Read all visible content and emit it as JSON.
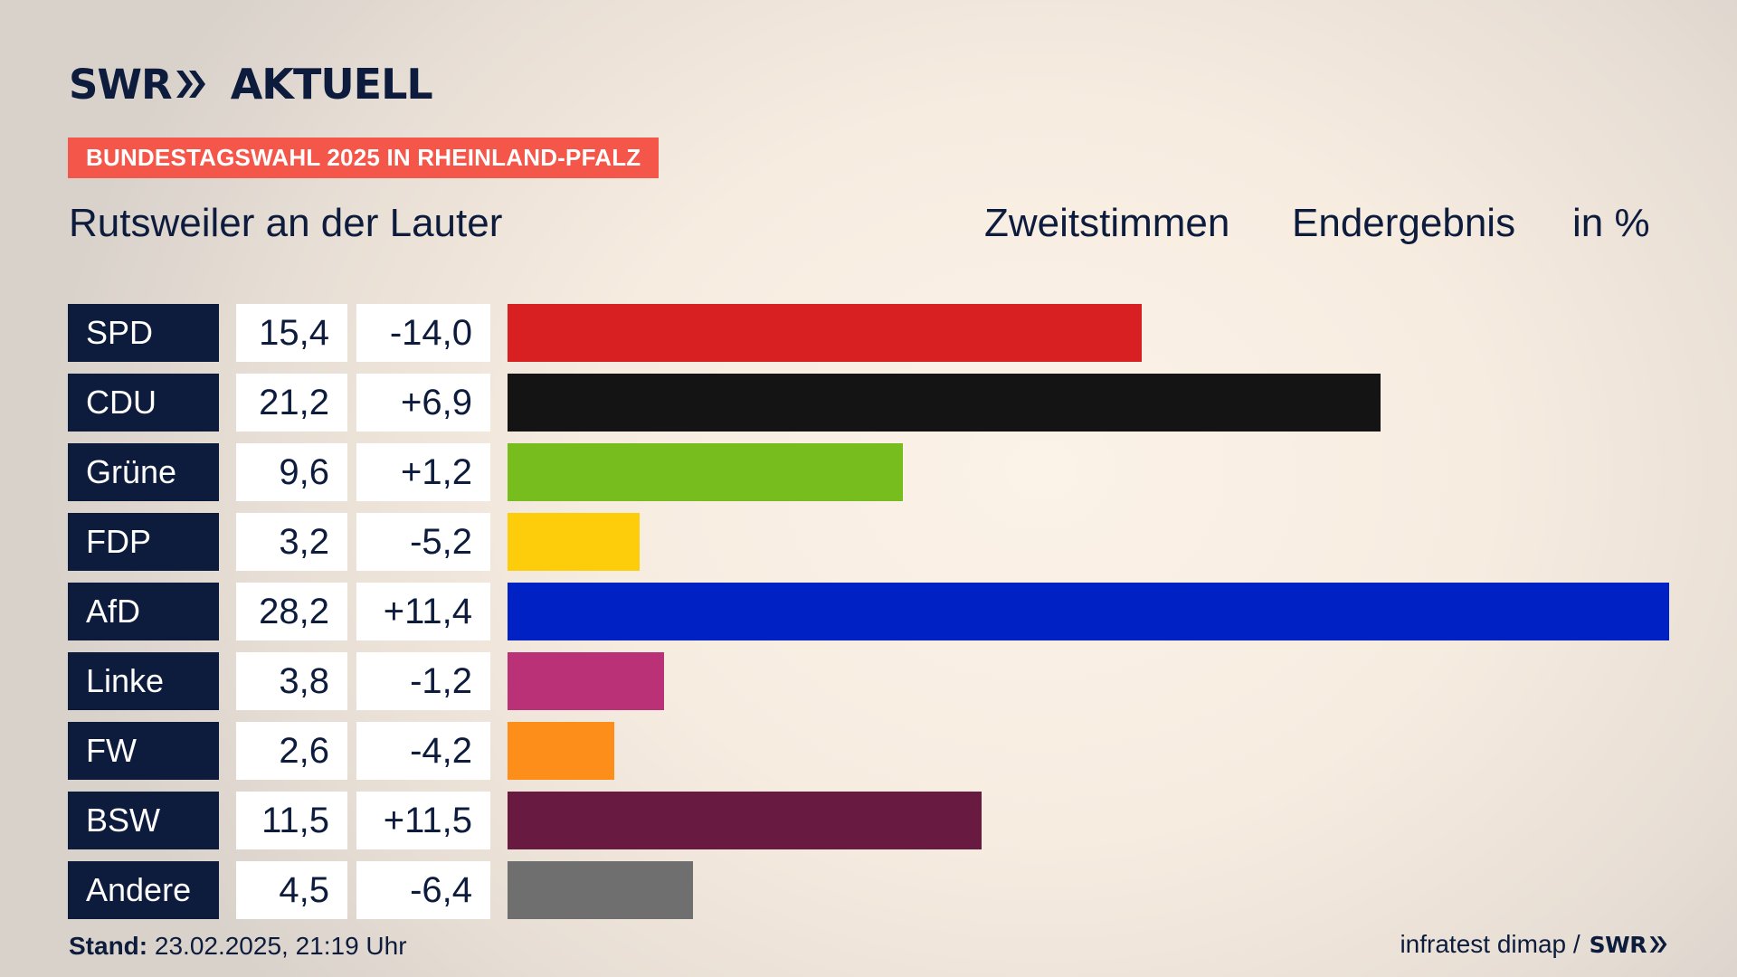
{
  "brand": {
    "logo_text": "SWR",
    "logo_suffix": "AKTUELL",
    "topic": "BUNDESTAGSWAHL 2025 IN RHEINLAND-PFALZ"
  },
  "header": {
    "location": "Rutsweiler an der Lauter",
    "vote_type": "Zweitstimmen",
    "result_type": "Endergebnis",
    "unit": "in %"
  },
  "chart_data": {
    "type": "bar",
    "orientation": "horizontal",
    "title": "Rutsweiler an der Lauter",
    "xlabel": "Zweitstimmen Endergebnis in %",
    "ylabel": "",
    "xlim": [
      0,
      28.2
    ],
    "categories": [
      "SPD",
      "CDU",
      "Grüne",
      "FDP",
      "AfD",
      "Linke",
      "FW",
      "BSW",
      "Andere"
    ],
    "values": [
      15.4,
      21.2,
      9.6,
      3.2,
      28.2,
      3.8,
      2.6,
      11.5,
      4.5
    ],
    "value_labels": [
      "15,4",
      "21,2",
      "9,6",
      "3,2",
      "28,2",
      "3,8",
      "2,6",
      "11,5",
      "4,5"
    ],
    "changes": [
      -14.0,
      6.9,
      1.2,
      -5.2,
      11.4,
      -1.2,
      -4.2,
      11.5,
      -6.4
    ],
    "change_labels": [
      "-14,0",
      "+6,9",
      "+1,2",
      "-5,2",
      "+11,4",
      "-1,2",
      "-4,2",
      "+11,5",
      "-6,4"
    ],
    "colors": [
      "#d81f22",
      "#141414",
      "#78bd1e",
      "#fdcd0b",
      "#0022c4",
      "#bb3177",
      "#fd8e19",
      "#681a41",
      "#6f6f6f"
    ]
  },
  "footer": {
    "stand_label": "Stand:",
    "stand_value": "23.02.2025, 21:19 Uhr",
    "source": "infratest dimap /",
    "source_logo": "SWR"
  },
  "colors": {
    "navy": "#0d1c3d",
    "accent": "#f5564a",
    "cell_bg": "#ffffff"
  }
}
